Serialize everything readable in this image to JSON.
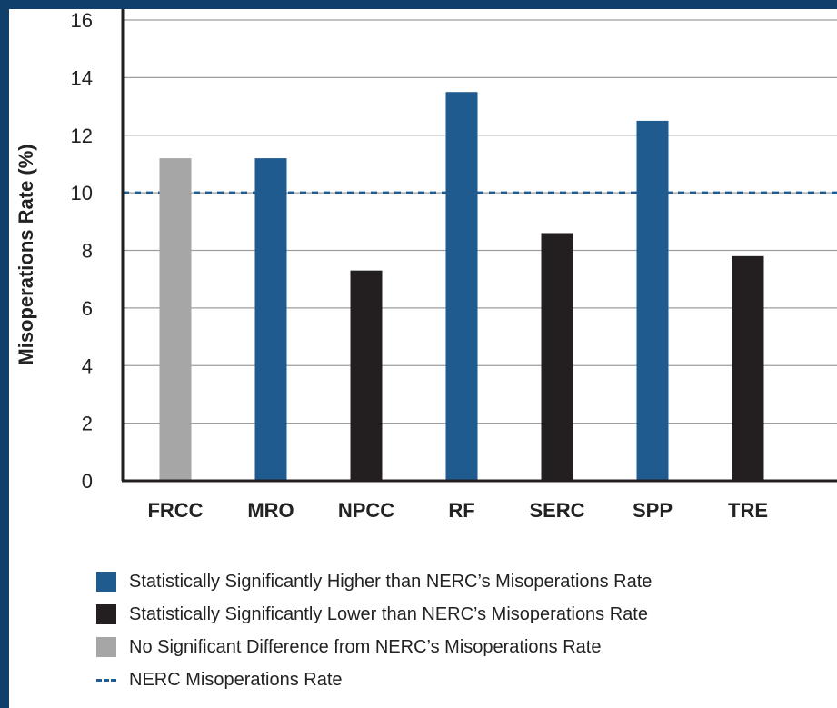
{
  "chart_data": {
    "type": "bar",
    "ylabel": "Misoperations Rate (%)",
    "ylim": [
      0,
      16
    ],
    "yticks": [
      0,
      2,
      4,
      6,
      8,
      10,
      12,
      14,
      16
    ],
    "grid": true,
    "categories": [
      "FRCC",
      "MRO",
      "NPCC",
      "RF",
      "SERC",
      "SPP",
      "TRE"
    ],
    "values": [
      11.2,
      11.2,
      7.3,
      13.5,
      8.6,
      12.5,
      7.8
    ],
    "bar_status": [
      "none",
      "higher",
      "lower",
      "higher",
      "lower",
      "higher",
      "lower"
    ],
    "reference_line": {
      "value": 10,
      "label": "NERC Misoperations Rate"
    },
    "colors": {
      "higher": "#1f5b8f",
      "lower": "#231f20",
      "none": "#a6a6a6",
      "reference": "#1f5b8f",
      "grid": "#9e9e9e"
    },
    "legend": [
      {
        "key": "higher",
        "label": "Statistically Significantly Higher than NERC’s Misoperations Rate"
      },
      {
        "key": "lower",
        "label": "Statistically Significantly Lower than NERC’s Misoperations Rate"
      },
      {
        "key": "none",
        "label": "No Significant Difference from NERC’s Misoperations Rate"
      },
      {
        "key": "reference",
        "label": "NERC Misoperations Rate"
      }
    ]
  }
}
